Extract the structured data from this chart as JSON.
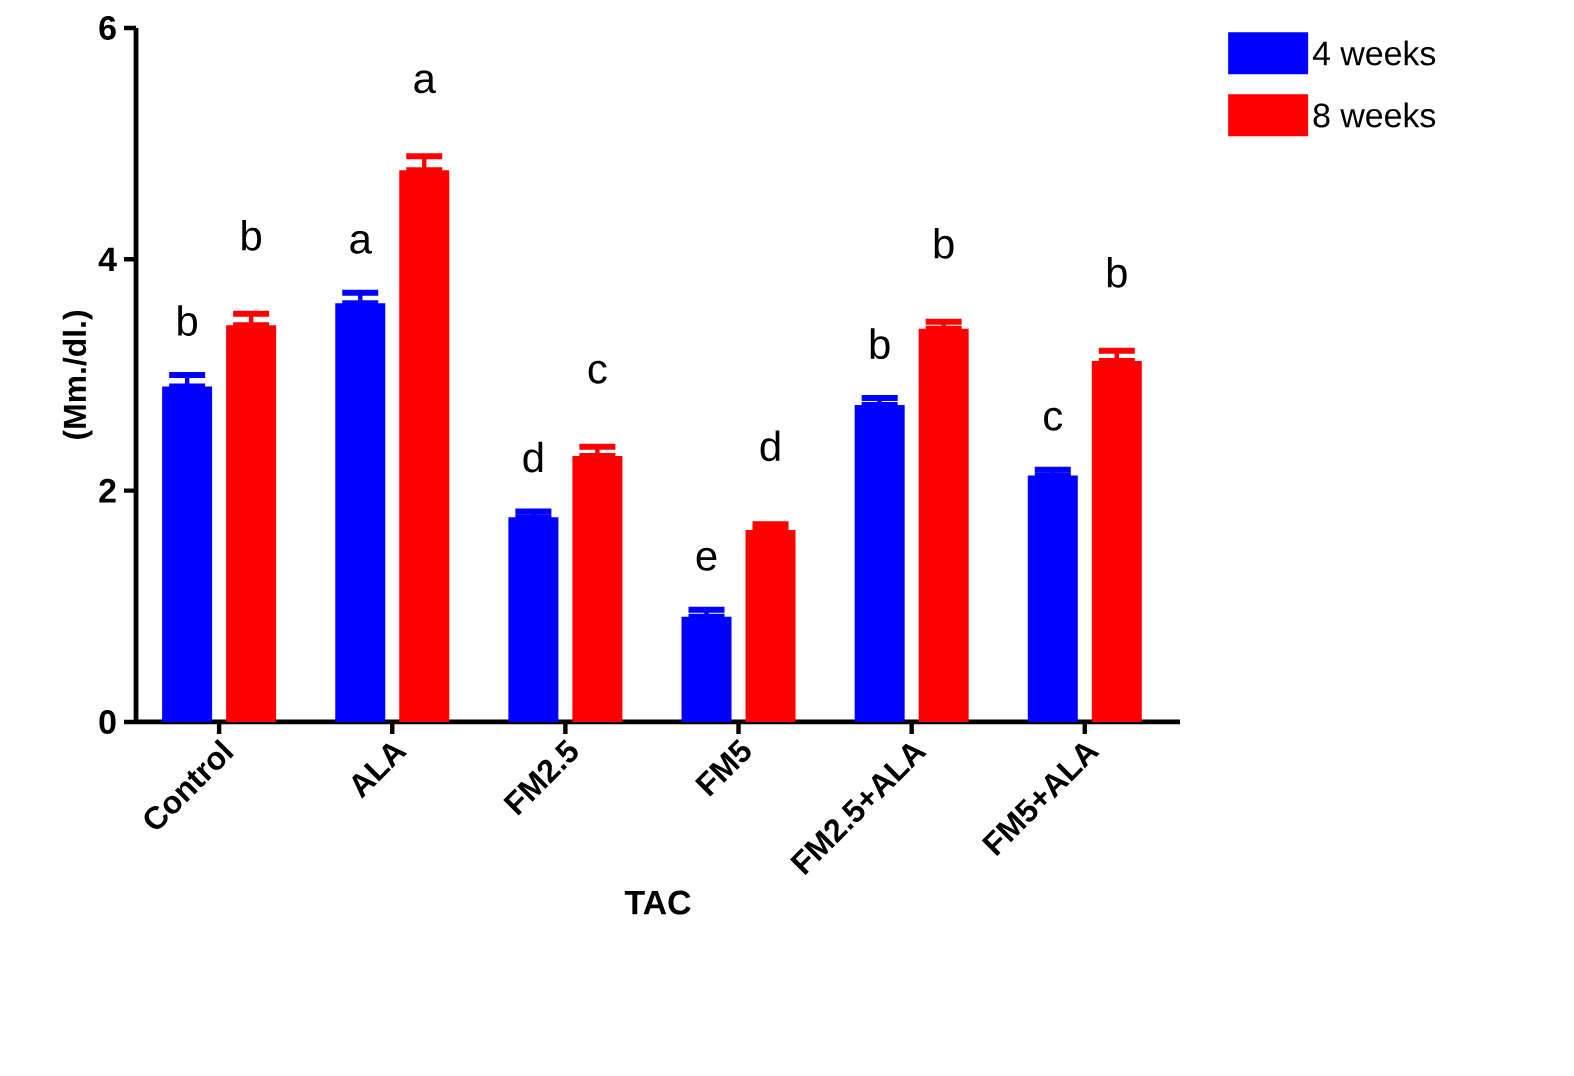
{
  "chart_data": {
    "type": "bar",
    "xlabel": "TAC",
    "ylabel": "(Mm./dl.)",
    "categories": [
      "Control",
      "ALA",
      "FM2.5",
      "FM5",
      "FM2.5+ALA",
      "FM5+ALA"
    ],
    "ylim": [
      0,
      6
    ],
    "yticks": [
      0,
      2,
      4,
      6
    ],
    "legend": "top right",
    "grid": false,
    "series": [
      {
        "name": "4 weeks",
        "color": "#0000ff",
        "values": [
          2.9,
          3.62,
          1.77,
          0.91,
          2.74,
          2.13
        ],
        "errors": [
          [
            2.9,
            3.0
          ],
          [
            3.62,
            3.71
          ],
          [
            1.77,
            1.82
          ],
          [
            0.91,
            0.97
          ],
          [
            2.74,
            2.8
          ],
          [
            2.13,
            2.18
          ]
        ]
      },
      {
        "name": "8 weeks",
        "color": "#ff0000",
        "values": [
          3.43,
          4.77,
          2.3,
          1.66,
          3.4,
          3.12
        ],
        "errors": [
          [
            3.43,
            3.53
          ],
          [
            4.77,
            4.89
          ],
          [
            2.3,
            2.38
          ],
          [
            1.66,
            1.71
          ],
          [
            3.4,
            3.46
          ],
          [
            3.12,
            3.21
          ]
        ]
      }
    ],
    "annotations": [
      "b",
      "b",
      "a",
      "a",
      "d",
      "c",
      "e",
      "d",
      "b",
      "b",
      "c",
      "b"
    ]
  }
}
